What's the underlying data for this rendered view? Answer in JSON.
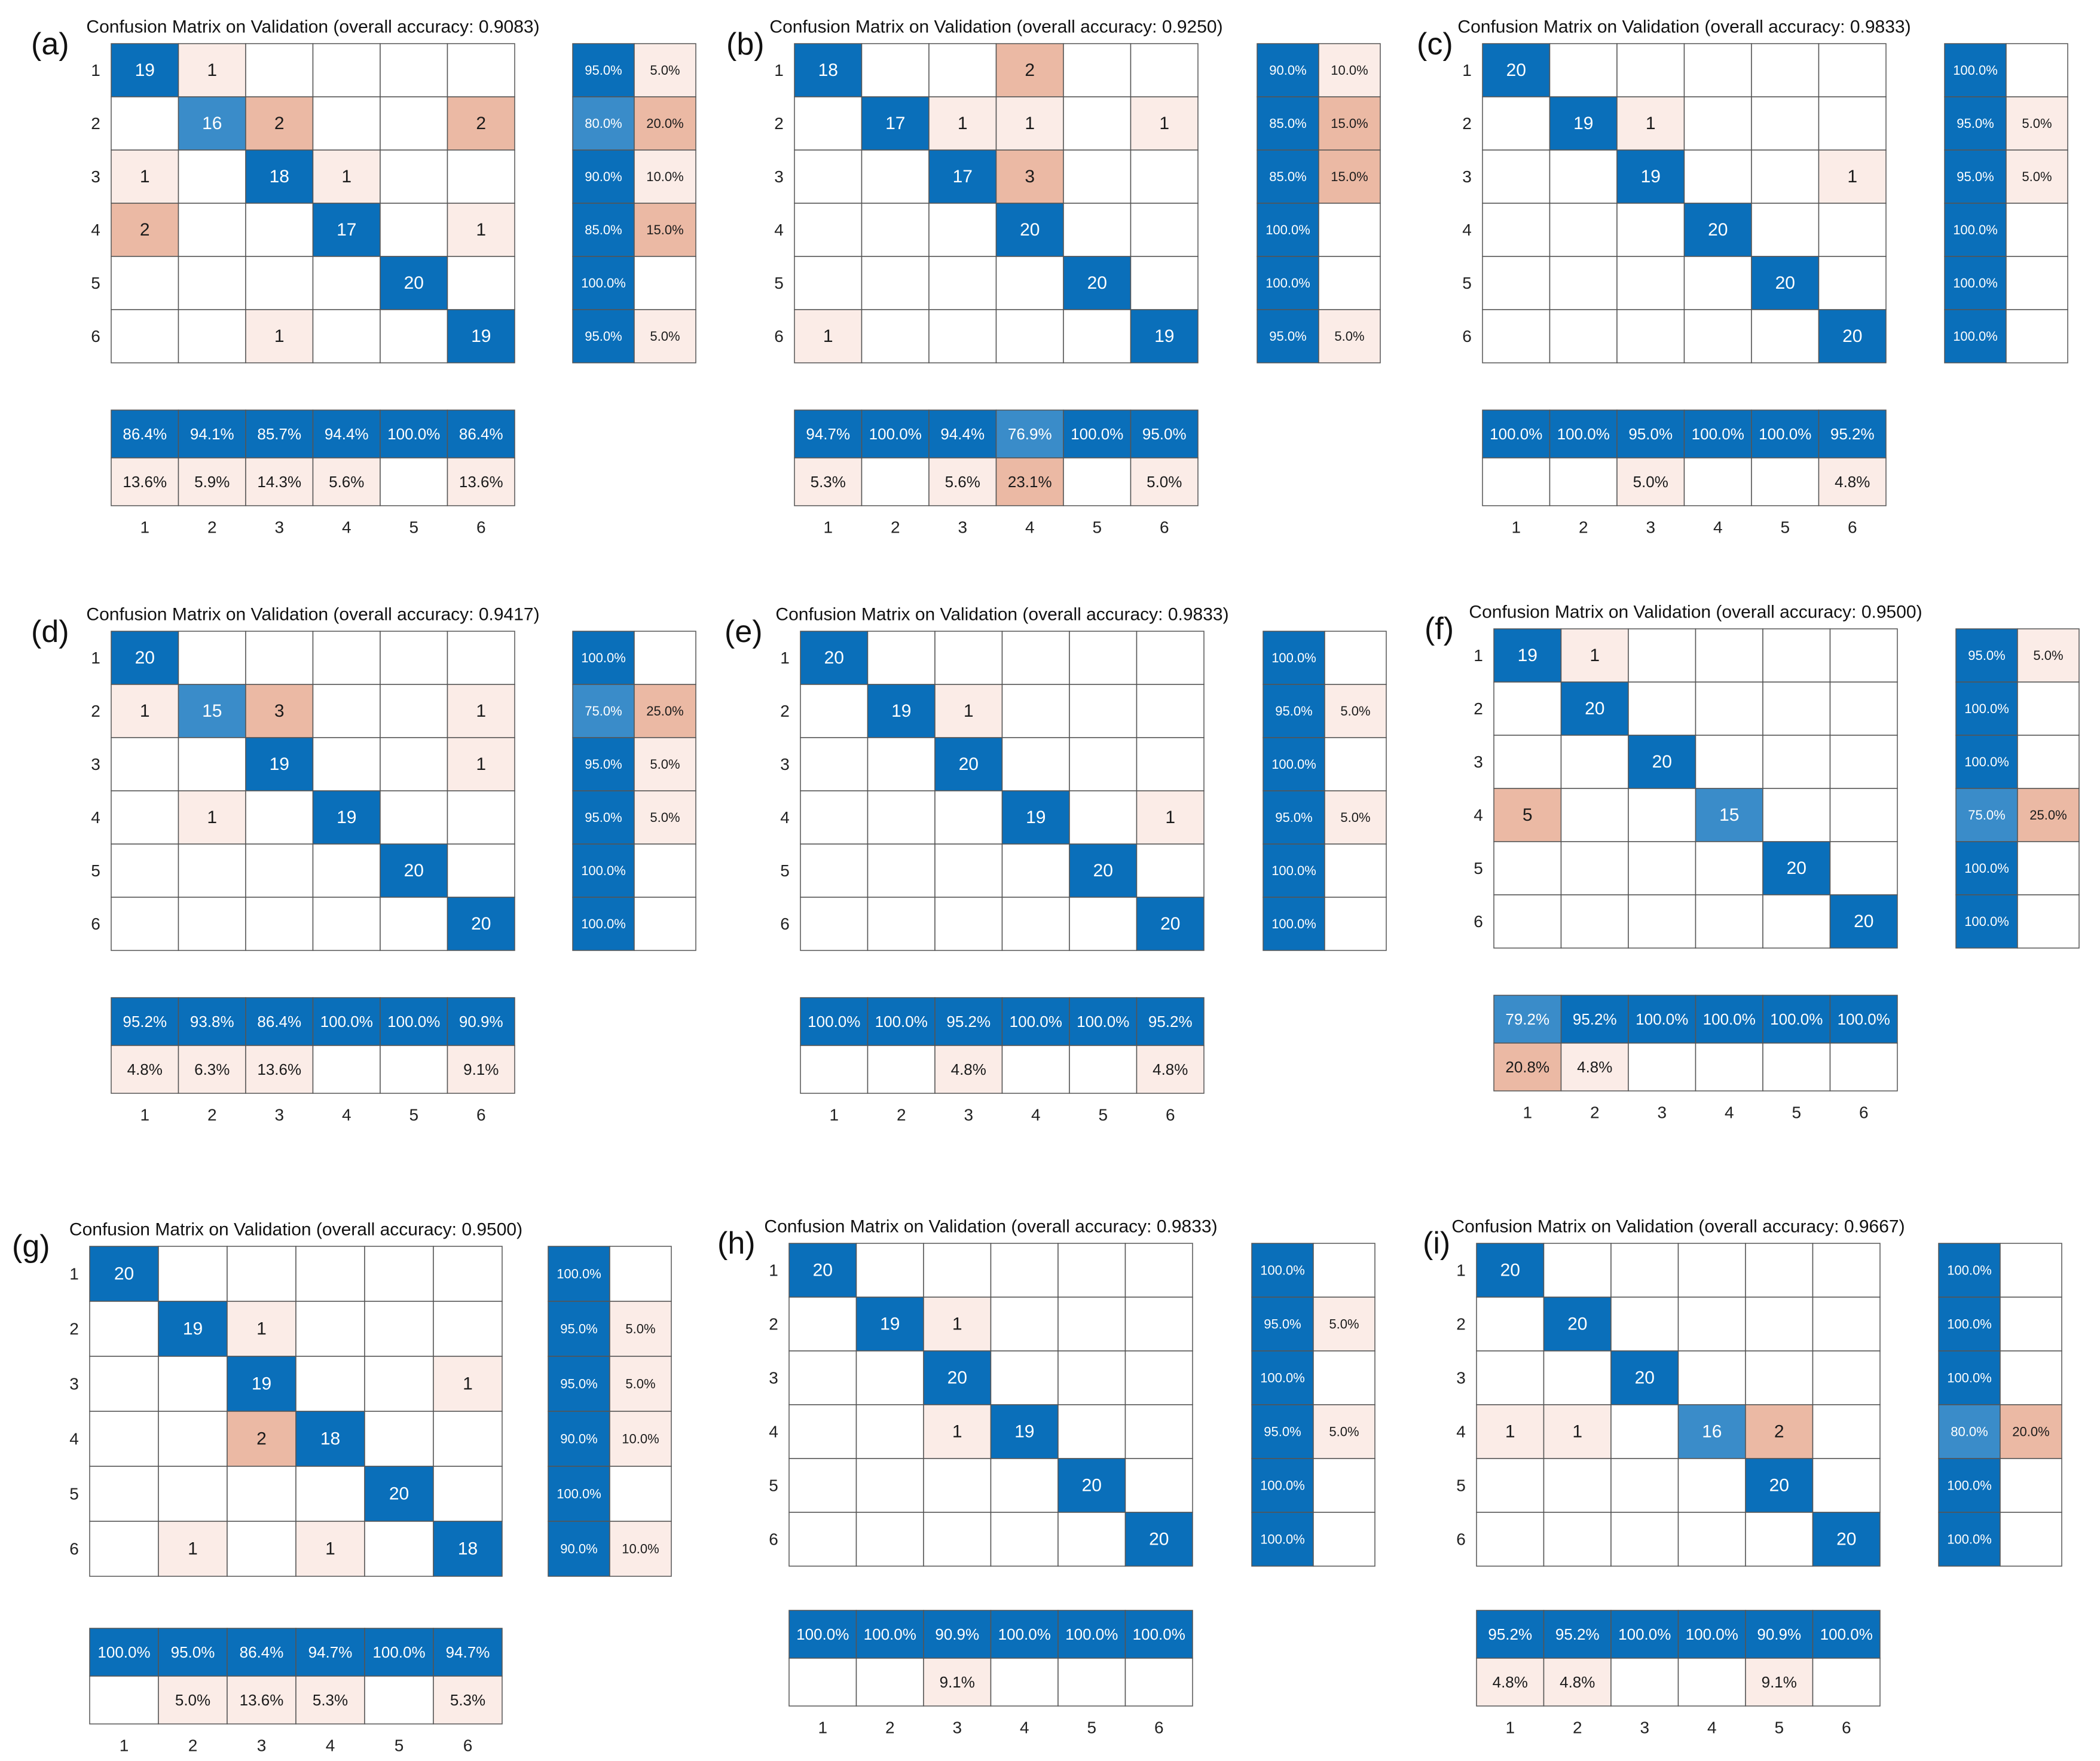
{
  "figure": {
    "classes": [
      "1",
      "2",
      "3",
      "4",
      "5",
      "6"
    ],
    "colors": {
      "diag_dark": "#0a6fba",
      "diag_mid": "#3a8cc9",
      "off_high": "#ebb9a4",
      "off_low": "#fbece7",
      "grid": "#555555",
      "dark_text": "#1a1a1a",
      "light_text": "#ffffff"
    }
  },
  "chart_data": [
    {
      "type": "heatmap",
      "panel_label": "(a)",
      "title": "Confusion Matrix on Validation (overall accuracy: 0.9083)",
      "matrix": [
        [
          19,
          1,
          0,
          0,
          0,
          0
        ],
        [
          0,
          16,
          2,
          0,
          0,
          2
        ],
        [
          1,
          0,
          18,
          1,
          0,
          0
        ],
        [
          2,
          0,
          0,
          17,
          0,
          1
        ],
        [
          0,
          0,
          0,
          0,
          20,
          0
        ],
        [
          0,
          0,
          1,
          0,
          0,
          19
        ]
      ],
      "row_summary": [
        [
          "95.0%",
          "5.0%"
        ],
        [
          "80.0%",
          "20.0%"
        ],
        [
          "90.0%",
          "10.0%"
        ],
        [
          "85.0%",
          "15.0%"
        ],
        [
          "100.0%",
          ""
        ],
        [
          "95.0%",
          "5.0%"
        ]
      ],
      "col_summary": [
        [
          "86.4%",
          "13.6%"
        ],
        [
          "94.1%",
          "5.9%"
        ],
        [
          "85.7%",
          "14.3%"
        ],
        [
          "94.4%",
          "5.6%"
        ],
        [
          "100.0%",
          ""
        ],
        [
          "86.4%",
          "13.6%"
        ]
      ]
    },
    {
      "type": "heatmap",
      "panel_label": "(b)",
      "title": "Confusion Matrix on Validation (overall accuracy: 0.9250)",
      "matrix": [
        [
          18,
          0,
          0,
          2,
          0,
          0
        ],
        [
          0,
          17,
          1,
          1,
          0,
          1
        ],
        [
          0,
          0,
          17,
          3,
          0,
          0
        ],
        [
          0,
          0,
          0,
          20,
          0,
          0
        ],
        [
          0,
          0,
          0,
          0,
          20,
          0
        ],
        [
          1,
          0,
          0,
          0,
          0,
          19
        ]
      ],
      "row_summary": [
        [
          "90.0%",
          "10.0%"
        ],
        [
          "85.0%",
          "15.0%"
        ],
        [
          "85.0%",
          "15.0%"
        ],
        [
          "100.0%",
          ""
        ],
        [
          "100.0%",
          ""
        ],
        [
          "95.0%",
          "5.0%"
        ]
      ],
      "col_summary": [
        [
          "94.7%",
          "5.3%"
        ],
        [
          "100.0%",
          ""
        ],
        [
          "94.4%",
          "5.6%"
        ],
        [
          "76.9%",
          "23.1%"
        ],
        [
          "100.0%",
          ""
        ],
        [
          "95.0%",
          "5.0%"
        ]
      ]
    },
    {
      "type": "heatmap",
      "panel_label": "(c)",
      "title": "Confusion Matrix on Validation (overall accuracy: 0.9833)",
      "matrix": [
        [
          20,
          0,
          0,
          0,
          0,
          0
        ],
        [
          0,
          19,
          1,
          0,
          0,
          0
        ],
        [
          0,
          0,
          19,
          0,
          0,
          1
        ],
        [
          0,
          0,
          0,
          20,
          0,
          0
        ],
        [
          0,
          0,
          0,
          0,
          20,
          0
        ],
        [
          0,
          0,
          0,
          0,
          0,
          20
        ]
      ],
      "row_summary": [
        [
          "100.0%",
          ""
        ],
        [
          "95.0%",
          "5.0%"
        ],
        [
          "95.0%",
          "5.0%"
        ],
        [
          "100.0%",
          ""
        ],
        [
          "100.0%",
          ""
        ],
        [
          "100.0%",
          ""
        ]
      ],
      "col_summary": [
        [
          "100.0%",
          ""
        ],
        [
          "100.0%",
          ""
        ],
        [
          "95.0%",
          "5.0%"
        ],
        [
          "100.0%",
          ""
        ],
        [
          "100.0%",
          ""
        ],
        [
          "95.2%",
          "4.8%"
        ]
      ]
    },
    {
      "type": "heatmap",
      "panel_label": "(d)",
      "title": "Confusion Matrix on Validation (overall accuracy: 0.9417)",
      "matrix": [
        [
          20,
          0,
          0,
          0,
          0,
          0
        ],
        [
          1,
          15,
          3,
          0,
          0,
          1
        ],
        [
          0,
          0,
          19,
          0,
          0,
          1
        ],
        [
          0,
          1,
          0,
          19,
          0,
          0
        ],
        [
          0,
          0,
          0,
          0,
          20,
          0
        ],
        [
          0,
          0,
          0,
          0,
          0,
          20
        ]
      ],
      "row_summary": [
        [
          "100.0%",
          ""
        ],
        [
          "75.0%",
          "25.0%"
        ],
        [
          "95.0%",
          "5.0%"
        ],
        [
          "95.0%",
          "5.0%"
        ],
        [
          "100.0%",
          ""
        ],
        [
          "100.0%",
          ""
        ]
      ],
      "col_summary": [
        [
          "95.2%",
          "4.8%"
        ],
        [
          "93.8%",
          "6.3%"
        ],
        [
          "86.4%",
          "13.6%"
        ],
        [
          "100.0%",
          ""
        ],
        [
          "100.0%",
          ""
        ],
        [
          "90.9%",
          "9.1%"
        ]
      ]
    },
    {
      "type": "heatmap",
      "panel_label": "(e)",
      "title": "Confusion Matrix on Validation (overall accuracy: 0.9833)",
      "matrix": [
        [
          20,
          0,
          0,
          0,
          0,
          0
        ],
        [
          0,
          19,
          1,
          0,
          0,
          0
        ],
        [
          0,
          0,
          20,
          0,
          0,
          0
        ],
        [
          0,
          0,
          0,
          19,
          0,
          1
        ],
        [
          0,
          0,
          0,
          0,
          20,
          0
        ],
        [
          0,
          0,
          0,
          0,
          0,
          20
        ]
      ],
      "row_summary": [
        [
          "100.0%",
          ""
        ],
        [
          "95.0%",
          "5.0%"
        ],
        [
          "100.0%",
          ""
        ],
        [
          "95.0%",
          "5.0%"
        ],
        [
          "100.0%",
          ""
        ],
        [
          "100.0%",
          ""
        ]
      ],
      "col_summary": [
        [
          "100.0%",
          ""
        ],
        [
          "100.0%",
          ""
        ],
        [
          "95.2%",
          "4.8%"
        ],
        [
          "100.0%",
          ""
        ],
        [
          "100.0%",
          ""
        ],
        [
          "95.2%",
          "4.8%"
        ]
      ]
    },
    {
      "type": "heatmap",
      "panel_label": "(f)",
      "title": "Confusion Matrix on Validation (overall accuracy: 0.9500)",
      "matrix": [
        [
          19,
          1,
          0,
          0,
          0,
          0
        ],
        [
          0,
          20,
          0,
          0,
          0,
          0
        ],
        [
          0,
          0,
          20,
          0,
          0,
          0
        ],
        [
          5,
          0,
          0,
          15,
          0,
          0
        ],
        [
          0,
          0,
          0,
          0,
          20,
          0
        ],
        [
          0,
          0,
          0,
          0,
          0,
          20
        ]
      ],
      "row_summary": [
        [
          "95.0%",
          "5.0%"
        ],
        [
          "100.0%",
          ""
        ],
        [
          "100.0%",
          ""
        ],
        [
          "75.0%",
          "25.0%"
        ],
        [
          "100.0%",
          ""
        ],
        [
          "100.0%",
          ""
        ]
      ],
      "col_summary": [
        [
          "79.2%",
          "20.8%"
        ],
        [
          "95.2%",
          "4.8%"
        ],
        [
          "100.0%",
          ""
        ],
        [
          "100.0%",
          ""
        ],
        [
          "100.0%",
          ""
        ],
        [
          "100.0%",
          ""
        ]
      ]
    },
    {
      "type": "heatmap",
      "panel_label": "(g)",
      "title": "Confusion Matrix on Validation (overall accuracy: 0.9500)",
      "matrix": [
        [
          20,
          0,
          0,
          0,
          0,
          0
        ],
        [
          0,
          19,
          1,
          0,
          0,
          0
        ],
        [
          0,
          0,
          19,
          0,
          0,
          1
        ],
        [
          0,
          0,
          2,
          18,
          0,
          0
        ],
        [
          0,
          0,
          0,
          0,
          20,
          0
        ],
        [
          0,
          1,
          0,
          1,
          0,
          18
        ]
      ],
      "row_summary": [
        [
          "100.0%",
          ""
        ],
        [
          "95.0%",
          "5.0%"
        ],
        [
          "95.0%",
          "5.0%"
        ],
        [
          "90.0%",
          "10.0%"
        ],
        [
          "100.0%",
          ""
        ],
        [
          "90.0%",
          "10.0%"
        ]
      ],
      "col_summary": [
        [
          "100.0%",
          ""
        ],
        [
          "95.0%",
          "5.0%"
        ],
        [
          "86.4%",
          "13.6%"
        ],
        [
          "94.7%",
          "5.3%"
        ],
        [
          "100.0%",
          ""
        ],
        [
          "94.7%",
          "5.3%"
        ]
      ]
    },
    {
      "type": "heatmap",
      "panel_label": "(h)",
      "title": "Confusion Matrix on Validation (overall accuracy: 0.9833)",
      "matrix": [
        [
          20,
          0,
          0,
          0,
          0,
          0
        ],
        [
          0,
          19,
          1,
          0,
          0,
          0
        ],
        [
          0,
          0,
          20,
          0,
          0,
          0
        ],
        [
          0,
          0,
          1,
          19,
          0,
          0
        ],
        [
          0,
          0,
          0,
          0,
          20,
          0
        ],
        [
          0,
          0,
          0,
          0,
          0,
          20
        ]
      ],
      "row_summary": [
        [
          "100.0%",
          ""
        ],
        [
          "95.0%",
          "5.0%"
        ],
        [
          "100.0%",
          ""
        ],
        [
          "95.0%",
          "5.0%"
        ],
        [
          "100.0%",
          ""
        ],
        [
          "100.0%",
          ""
        ]
      ],
      "col_summary": [
        [
          "100.0%",
          ""
        ],
        [
          "100.0%",
          ""
        ],
        [
          "90.9%",
          "9.1%"
        ],
        [
          "100.0%",
          ""
        ],
        [
          "100.0%",
          ""
        ],
        [
          "100.0%",
          ""
        ]
      ]
    },
    {
      "type": "heatmap",
      "panel_label": "(i)",
      "title": "Confusion Matrix on Validation (overall accuracy: 0.9667)",
      "matrix": [
        [
          20,
          0,
          0,
          0,
          0,
          0
        ],
        [
          0,
          20,
          0,
          0,
          0,
          0
        ],
        [
          0,
          0,
          20,
          0,
          0,
          0
        ],
        [
          1,
          1,
          0,
          16,
          2,
          0
        ],
        [
          0,
          0,
          0,
          0,
          20,
          0
        ],
        [
          0,
          0,
          0,
          0,
          0,
          20
        ]
      ],
      "row_summary": [
        [
          "100.0%",
          ""
        ],
        [
          "100.0%",
          ""
        ],
        [
          "100.0%",
          ""
        ],
        [
          "80.0%",
          "20.0%"
        ],
        [
          "100.0%",
          ""
        ],
        [
          "100.0%",
          ""
        ]
      ],
      "col_summary": [
        [
          "95.2%",
          "4.8%"
        ],
        [
          "95.2%",
          "4.8%"
        ],
        [
          "100.0%",
          ""
        ],
        [
          "100.0%",
          ""
        ],
        [
          "90.9%",
          "9.1%"
        ],
        [
          "100.0%",
          ""
        ]
      ]
    }
  ]
}
